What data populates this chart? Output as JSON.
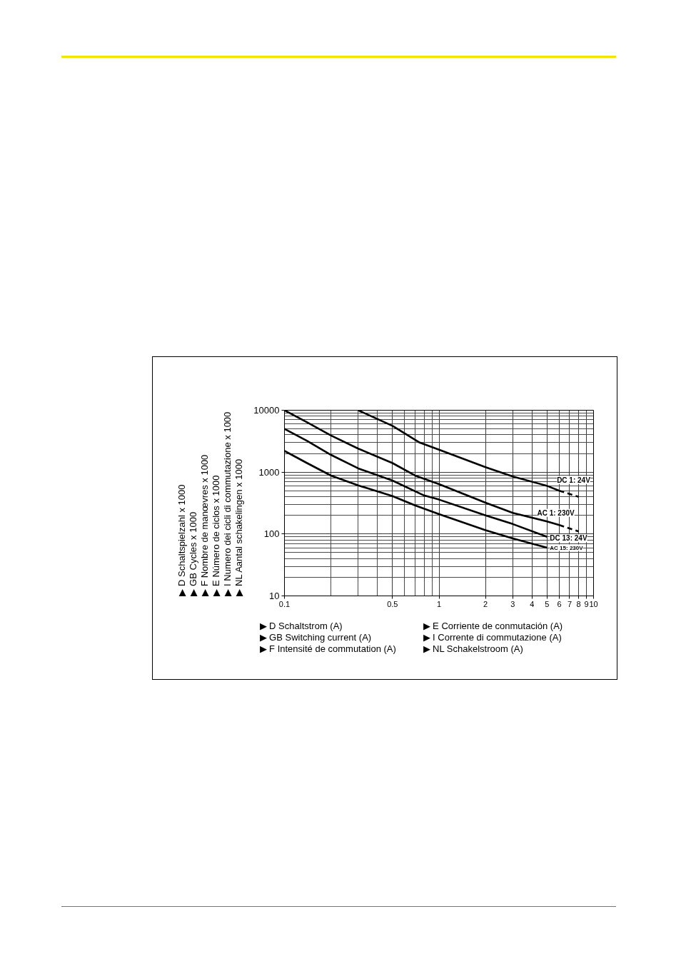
{
  "chart_data": {
    "type": "line",
    "log": "xy",
    "grid": true,
    "line_style": "solid",
    "xlabel": "▶ D Schaltstrom (A)\n▶ GB Switching current (A)\n▶ F Intensité de commutation (A)\n▶ E Corriente de conmutación (A)\n▶ I Corrente di commutazione (A)\n▶ NL Schakelstroom (A)",
    "ylabel": "▶ D Schaltspielzahl x 1000\n▶ GB Cycles x 1000\n▶ F Nombre de manœvres x 1000\n▶ E Número de ciclos x 1000\n▶ I Numero dei cicli di commutazione x 1000\n▶ NL Aantal schakelingen x 1000",
    "xlim": [
      0.1,
      10
    ],
    "xticks": [
      0.1,
      {
        "value": 0.2,
        "label": null
      },
      {
        "value": 0.3,
        "label": null
      },
      {
        "value": 0.4,
        "label": null
      },
      0.5,
      {
        "value": 0.6,
        "label": null
      },
      {
        "value": 0.7,
        "label": null
      },
      {
        "value": 0.8,
        "label": null
      },
      {
        "value": 0.9,
        "label": null
      },
      1,
      2,
      3,
      4,
      5,
      6,
      7,
      8,
      9,
      10
    ],
    "ylim": [
      10,
      10000
    ],
    "yticks": [
      10,
      {
        "value": 20,
        "label": null
      },
      {
        "value": 30,
        "label": null
      },
      {
        "value": 40,
        "label": null
      },
      {
        "value": 50,
        "label": null
      },
      {
        "value": 60,
        "label": null
      },
      {
        "value": 70,
        "label": null
      },
      {
        "value": 80,
        "label": null
      },
      {
        "value": 90,
        "label": null
      },
      100,
      {
        "value": 200,
        "label": null
      },
      {
        "value": 300,
        "label": null
      },
      {
        "value": 400,
        "label": null
      },
      {
        "value": 500,
        "label": null
      },
      {
        "value": 600,
        "label": null
      },
      {
        "value": 700,
        "label": null
      },
      {
        "value": 800,
        "label": null
      },
      {
        "value": 900,
        "label": null
      },
      1000,
      {
        "value": 2000,
        "label": null
      },
      {
        "value": 3000,
        "label": null
      },
      {
        "value": 4000,
        "label": null
      },
      {
        "value": 5000,
        "label": null
      },
      {
        "value": 6000,
        "label": null
      },
      {
        "value": 7000,
        "label": null
      },
      {
        "value": 8000,
        "label": null
      },
      {
        "value": 9000,
        "label": null
      },
      10000
    ],
    "series": [
      {
        "name": "AC 1: 230V",
        "color": "#000000",
        "x": [
          0.1,
          0.14,
          0.2,
          0.3,
          0.5,
          0.7,
          1,
          2,
          3,
          5,
          6
        ],
        "values": [
          10000,
          6400,
          3900,
          2400,
          1400,
          880,
          640,
          320,
          220,
          160,
          140
        ]
      },
      {
        "name": "DC 13: 24V",
        "color": "#000000",
        "x": [
          0.1,
          0.14,
          0.2,
          0.3,
          0.5,
          0.8,
          1,
          2,
          3,
          5
        ],
        "values": [
          5000,
          3200,
          1900,
          1150,
          730,
          420,
          360,
          200,
          145,
          90
        ]
      },
      {
        "name": "AC 15: 230V",
        "color": "#000000",
        "x": [
          0.1,
          0.14,
          0.2,
          0.3,
          0.5,
          0.7,
          1,
          2,
          3,
          5
        ],
        "values": [
          2200,
          1400,
          880,
          610,
          410,
          290,
          210,
          115,
          85,
          60
        ]
      },
      {
        "name": "DC 1: 24V",
        "color": "#000000",
        "x": [
          0.3,
          0.5,
          0.75,
          1,
          2,
          3,
          5,
          6
        ],
        "values": [
          10000,
          5600,
          3000,
          2300,
          1200,
          850,
          600,
          500
        ]
      },
      {
        "color": "#000000",
        "line_style": "dashed",
        "x": [
          6,
          8
        ],
        "values": [
          140,
          110
        ]
      },
      {
        "color": "#000000",
        "line_style": "dashed",
        "x": [
          6,
          8
        ],
        "values": [
          500,
          400
        ]
      }
    ]
  }
}
